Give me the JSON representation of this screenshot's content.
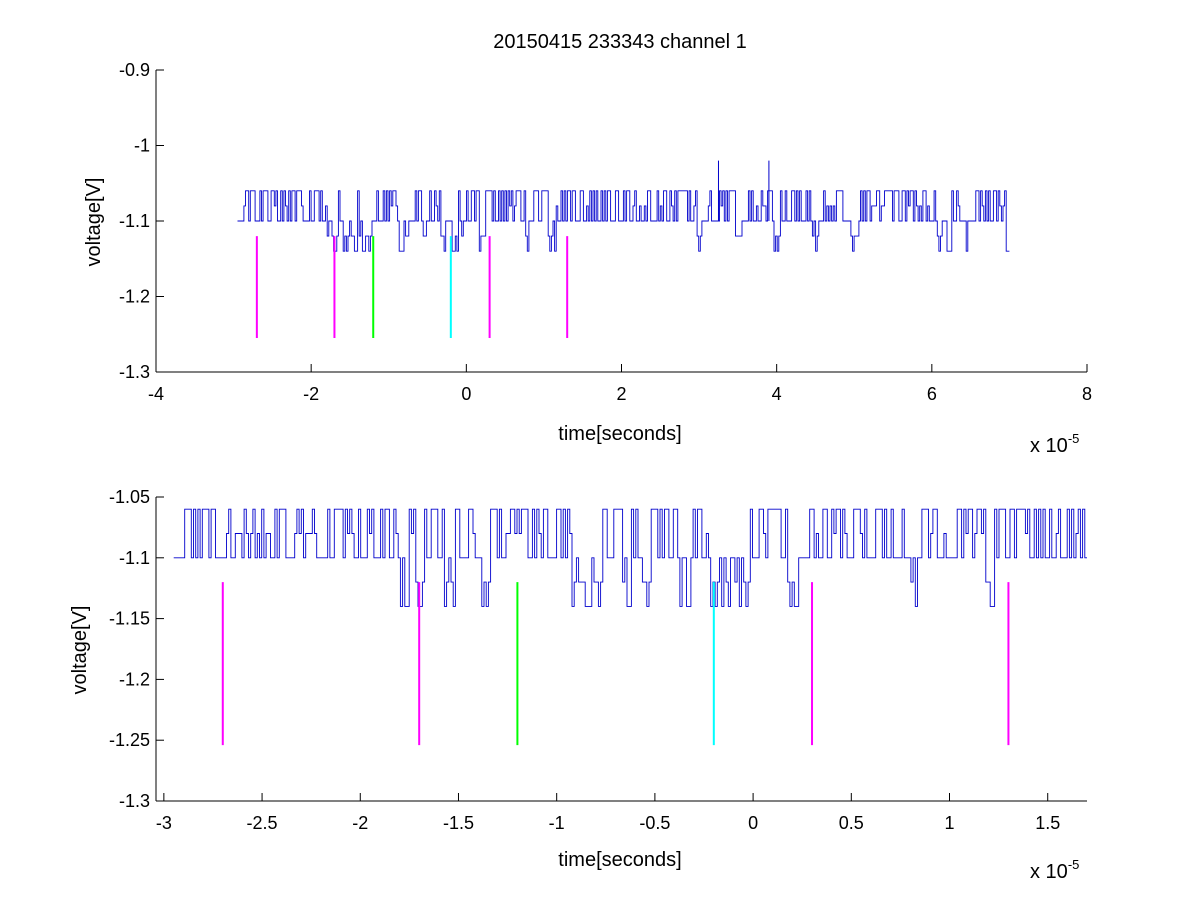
{
  "title": "20150415 233343 channel 1",
  "chart_data": [
    {
      "type": "line",
      "xlabel": "time[seconds]",
      "ylabel": "voltage[V]",
      "x_scale_label": "x 10",
      "x_scale_exponent": "-5",
      "xlim": [
        -4,
        8
      ],
      "ylim": [
        -1.3,
        -0.9
      ],
      "xticks": [
        -4,
        -2,
        0,
        2,
        4,
        6,
        8
      ],
      "xtick_labels": [
        "-4",
        "-2",
        "0",
        "2",
        "4",
        "6",
        "8"
      ],
      "yticks": [
        -1.3,
        -1.2,
        -1.1,
        -1.0,
        -0.9
      ],
      "ytick_labels": [
        "-1.3",
        "-1.2",
        "-1.1",
        "-1",
        "-0.9"
      ],
      "signal": {
        "color": "#0000cc",
        "x_start": -2.95,
        "x_end": 7.0,
        "baseline": -1.1,
        "levels": [
          -1.14,
          -1.12,
          -1.1,
          -1.08,
          -1.06
        ],
        "spikes": [
          {
            "x": 3.25,
            "y": -1.02
          },
          {
            "x": 3.9,
            "y": -1.02
          }
        ],
        "dips": [
          -1.75,
          -1.7,
          -1.55,
          -1.45,
          -1.35,
          -1.28,
          -0.85,
          -0.8,
          -0.75,
          -0.55,
          -0.3,
          -0.15,
          -0.05,
          0.2,
          0.8,
          1.1,
          3.0,
          3.5,
          4.0,
          4.5,
          5.0,
          6.1,
          6.2,
          6.4,
          7.0
        ],
        "dip_depth": -1.14
      },
      "markers": [
        {
          "x": -2.7,
          "y_top": -1.12,
          "y_bottom": -1.255,
          "color": "#ff00ff"
        },
        {
          "x": -1.7,
          "y_top": -1.12,
          "y_bottom": -1.255,
          "color": "#ff00ff"
        },
        {
          "x": -1.2,
          "y_top": -1.12,
          "y_bottom": -1.255,
          "color": "#00ff00"
        },
        {
          "x": -0.2,
          "y_top": -1.12,
          "y_bottom": -1.255,
          "color": "#00ffff"
        },
        {
          "x": 0.3,
          "y_top": -1.12,
          "y_bottom": -1.255,
          "color": "#ff00ff"
        },
        {
          "x": 1.3,
          "y_top": -1.12,
          "y_bottom": -1.255,
          "color": "#ff00ff"
        }
      ]
    },
    {
      "type": "line",
      "xlabel": "time[seconds]",
      "ylabel": "voltage[V]",
      "x_scale_label": "x 10",
      "x_scale_exponent": "-5",
      "xlim": [
        -3.04,
        1.7
      ],
      "ylim": [
        -1.3,
        -1.05
      ],
      "xticks": [
        -3,
        -2.5,
        -2,
        -1.5,
        -1,
        -0.5,
        0,
        0.5,
        1,
        1.5
      ],
      "xtick_labels": [
        "-3",
        "-2.5",
        "-2",
        "-1.5",
        "-1",
        "-0.5",
        "0",
        "0.5",
        "1",
        "1.5"
      ],
      "yticks": [
        -1.3,
        -1.25,
        -1.2,
        -1.15,
        -1.1,
        -1.05
      ],
      "ytick_labels": [
        "-1.3",
        "-1.25",
        "-1.2",
        "-1.15",
        "-1.1",
        "-1.05"
      ],
      "signal": {
        "color": "#0000cc",
        "x_start": -2.95,
        "x_end": 1.7,
        "baseline": -1.1,
        "levels": [
          -1.14,
          -1.12,
          -1.1,
          -1.08,
          -1.06
        ],
        "spikes": [],
        "dips": [
          -1.78,
          -1.7,
          -1.55,
          -1.37,
          -0.9,
          -0.85,
          -0.8,
          -0.65,
          -0.55,
          -0.35,
          -0.2,
          -0.15,
          -0.1,
          -0.05,
          0.2,
          0.82,
          1.2
        ],
        "dip_depth": -1.14
      },
      "markers": [
        {
          "x": -2.7,
          "y_top": -1.12,
          "y_bottom": -1.254,
          "color": "#ff00ff"
        },
        {
          "x": -1.7,
          "y_top": -1.12,
          "y_bottom": -1.254,
          "color": "#ff00ff"
        },
        {
          "x": -1.2,
          "y_top": -1.12,
          "y_bottom": -1.254,
          "color": "#00ff00"
        },
        {
          "x": -0.2,
          "y_top": -1.12,
          "y_bottom": -1.254,
          "color": "#00ffff"
        },
        {
          "x": 0.3,
          "y_top": -1.12,
          "y_bottom": -1.254,
          "color": "#ff00ff"
        },
        {
          "x": 1.3,
          "y_top": -1.12,
          "y_bottom": -1.254,
          "color": "#ff00ff"
        }
      ]
    }
  ]
}
